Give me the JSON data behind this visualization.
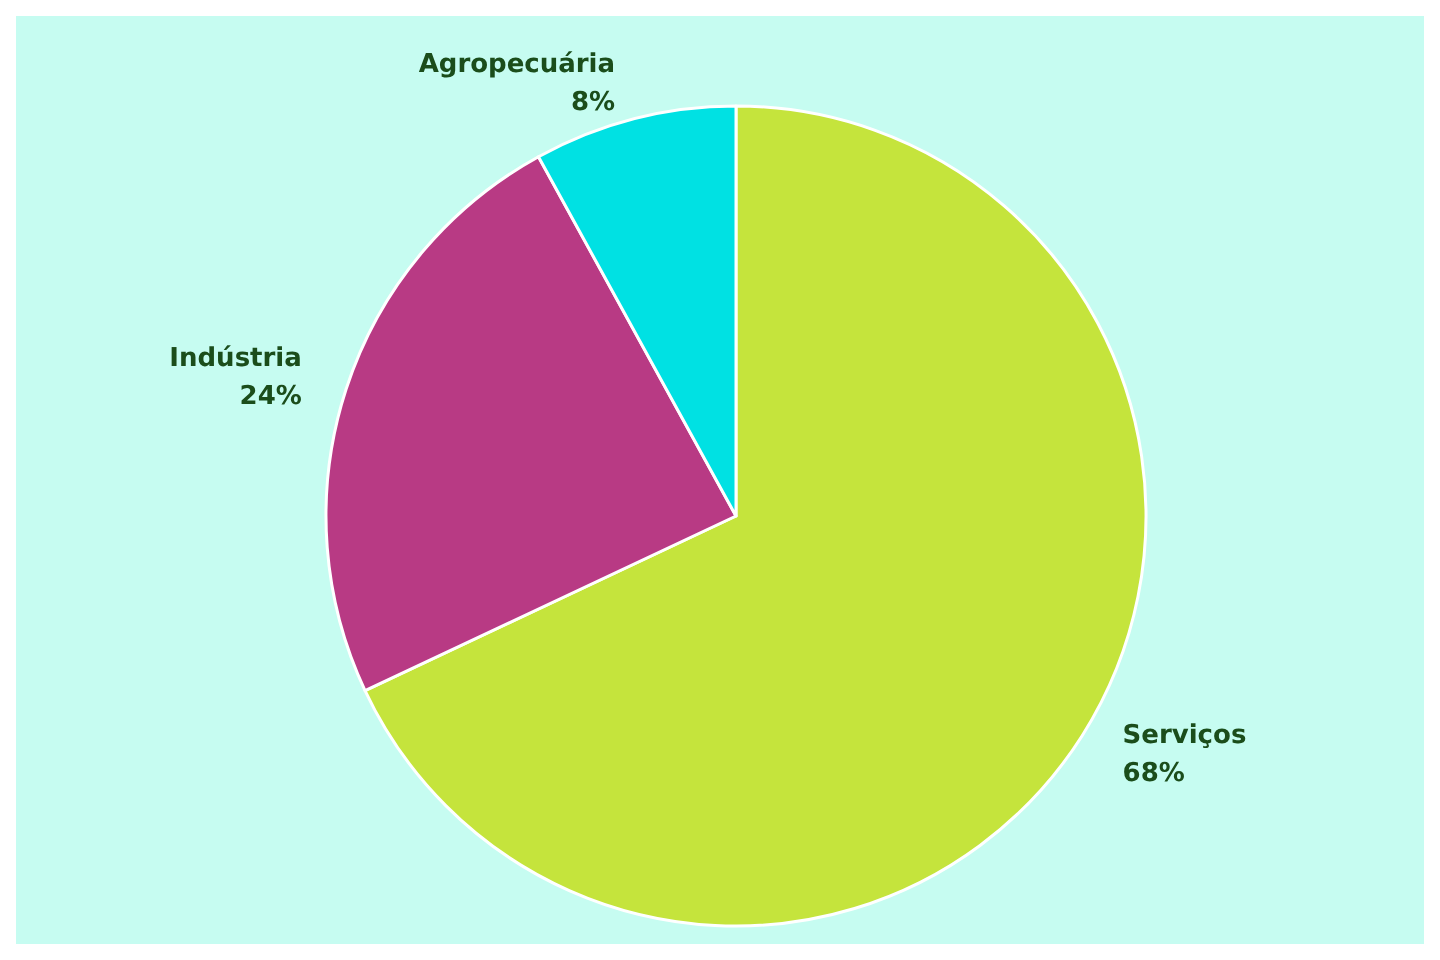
{
  "chart_data": {
    "type": "pie",
    "categories": [
      "Serviços",
      "Indústria",
      "Agropecuária"
    ],
    "values": [
      68,
      24,
      8
    ],
    "value_labels": [
      "68%",
      "24%",
      "8%"
    ],
    "colors": [
      "#c5e43c",
      "#b83a84",
      "#00e1e3"
    ],
    "legend": false
  }
}
